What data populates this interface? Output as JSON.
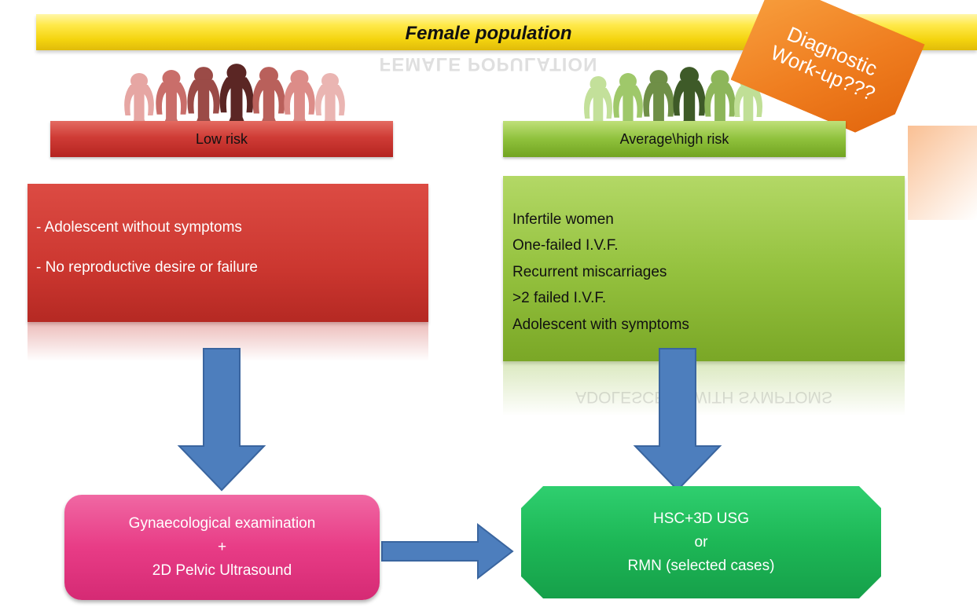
{
  "banner": {
    "title": "Female population",
    "reflection": "FEMALE POPULATION"
  },
  "badge": {
    "line1": "Diagnostic",
    "line2": "Work-up???"
  },
  "low_risk": {
    "header": "Low risk",
    "items": [
      "- Adolescent without symptoms",
      "- No reproductive desire or failure"
    ]
  },
  "average_high_risk": {
    "header": "Average\\high risk",
    "items": [
      "Infertile women",
      "One-failed I.V.F.",
      "Recurrent miscarriages",
      ">2 failed I.V.F.",
      "Adolescent with symptoms"
    ],
    "reflection": "ADOLESCENT WITH SYMPTOMS"
  },
  "exam_box": {
    "line1": "Gynaecological examination",
    "line2": "+",
    "line3": "2D Pelvic Ultrasound"
  },
  "imaging_box": {
    "line1": "HSC+3D USG",
    "line2": "or",
    "line3": "RMN (selected cases)"
  },
  "colors": {
    "banner": "#ffe94a",
    "badge": "#ef7d1f",
    "low_risk": "#cc3730",
    "average_high_risk": "#95c23f",
    "exam_box": "#e83c86",
    "imaging_box": "#1db756",
    "arrow": "#4d7ebd"
  }
}
